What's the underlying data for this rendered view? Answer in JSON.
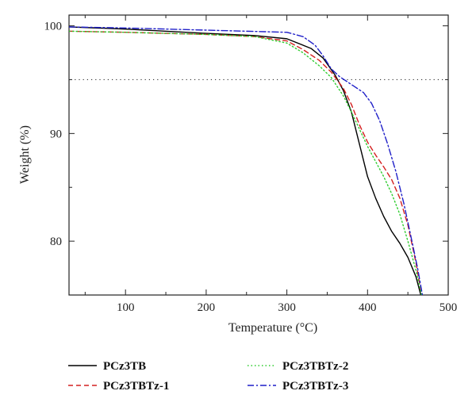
{
  "chart_data": {
    "type": "line",
    "title": "",
    "xlabel": "Temperature (°C)",
    "ylabel": "Weight (%)",
    "xlim": [
      30,
      500
    ],
    "ylim": [
      75,
      101
    ],
    "xticks": [
      100,
      200,
      300,
      400,
      500
    ],
    "yticks": [
      80,
      90,
      100
    ],
    "xtick_labels": [
      "100",
      "200",
      "300",
      "400",
      "500"
    ],
    "ytick_labels": [
      "80",
      "90",
      "100"
    ],
    "reference_line": {
      "y": 95,
      "style": "dotted"
    },
    "legend_position": "bottom",
    "series": [
      {
        "name": "PCz3TB",
        "color": "#000000",
        "dash": "solid",
        "x": [
          30,
          100,
          200,
          260,
          300,
          330,
          345,
          360,
          370,
          380,
          390,
          400,
          410,
          420,
          430,
          440,
          450,
          460,
          466
        ],
        "y": [
          99.9,
          99.7,
          99.3,
          99.1,
          98.8,
          97.9,
          97.0,
          95.4,
          94.0,
          92.0,
          89.0,
          86.0,
          84.0,
          82.3,
          80.9,
          79.8,
          78.5,
          76.7,
          75
        ]
      },
      {
        "name": "PCz3TBTz-1",
        "color": "#d42020",
        "dash": "dashed",
        "x": [
          30,
          100,
          200,
          260,
          300,
          320,
          340,
          355,
          370,
          380,
          390,
          400,
          410,
          420,
          430,
          440,
          450,
          460,
          467
        ],
        "y": [
          99.5,
          99.4,
          99.2,
          99.0,
          98.6,
          97.8,
          96.8,
          95.7,
          94.2,
          92.7,
          90.8,
          89.2,
          88.0,
          86.9,
          85.7,
          84.0,
          81.5,
          78.0,
          75
        ]
      },
      {
        "name": "PCz3TBTz-2",
        "color": "#2ecc2e",
        "dash": "dotted",
        "x": [
          30,
          100,
          200,
          260,
          300,
          320,
          340,
          355,
          370,
          380,
          390,
          400,
          410,
          420,
          430,
          440,
          450,
          460,
          467
        ],
        "y": [
          99.5,
          99.4,
          99.2,
          99.0,
          98.4,
          97.5,
          96.3,
          95.2,
          93.5,
          92.0,
          90.4,
          88.8,
          87.4,
          86.0,
          84.4,
          82.5,
          80.0,
          77.3,
          75
        ]
      },
      {
        "name": "PCz3TBTz-3",
        "color": "#1f1fc8",
        "dash": "dashdot",
        "x": [
          30,
          100,
          200,
          300,
          320,
          335,
          345,
          355,
          365,
          375,
          385,
          395,
          405,
          415,
          425,
          435,
          445,
          455,
          462,
          468
        ],
        "y": [
          99.9,
          99.8,
          99.6,
          99.4,
          99.0,
          98.2,
          97.2,
          96.0,
          95.3,
          94.8,
          94.3,
          93.8,
          92.8,
          91.2,
          89.0,
          86.5,
          83.5,
          80.0,
          77.5,
          75
        ]
      }
    ]
  }
}
